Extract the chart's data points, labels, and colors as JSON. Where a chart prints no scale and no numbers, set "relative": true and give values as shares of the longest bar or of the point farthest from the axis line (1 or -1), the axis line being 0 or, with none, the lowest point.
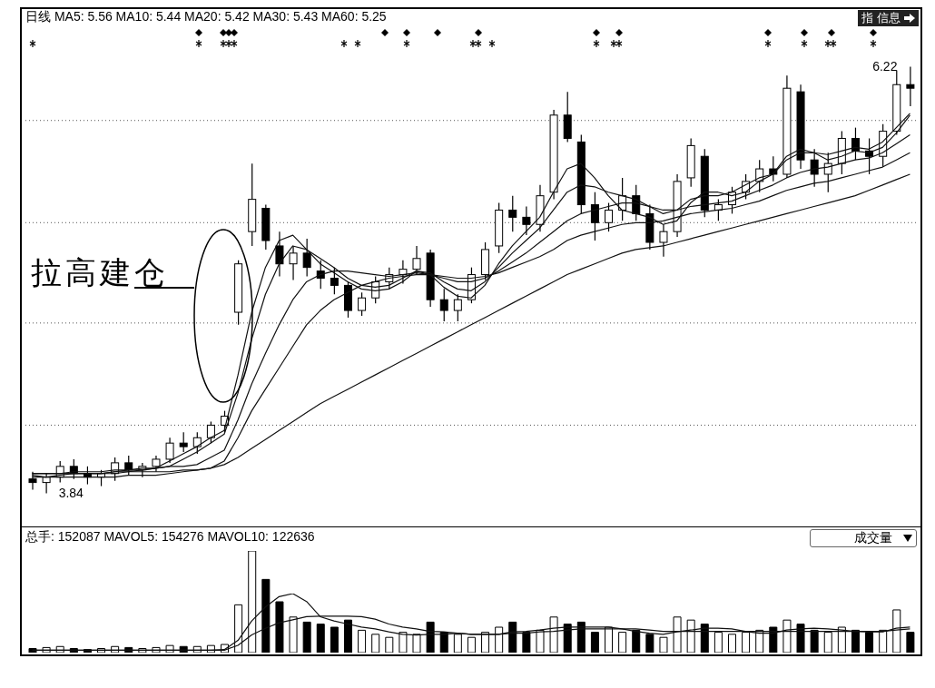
{
  "chart_data": [
    {
      "type": "candlestick",
      "title": "日线 MA5: 5.56 MA10: 5.44 MA20: 5.42 MA30: 5.43 MA60: 5.25",
      "categories": [
        null,
        null,
        null,
        null,
        null,
        null,
        null,
        null,
        null,
        null,
        null,
        null,
        null,
        null,
        null,
        null,
        null,
        null,
        null,
        null,
        null,
        null,
        null,
        null,
        null,
        null,
        null,
        null,
        null,
        null,
        null,
        null,
        null,
        null,
        null,
        null,
        null,
        null,
        null,
        null,
        null,
        null,
        null,
        null,
        null,
        null,
        null,
        null,
        null,
        null,
        null,
        null,
        null,
        null,
        null,
        null,
        null,
        null,
        null,
        null,
        null,
        null,
        null,
        null,
        null
      ],
      "ohlc": [
        [
          3.92,
          3.96,
          3.86,
          3.9
        ],
        [
          3.9,
          3.95,
          3.84,
          3.93
        ],
        [
          3.93,
          4.02,
          3.9,
          3.99
        ],
        [
          3.99,
          4.03,
          3.92,
          3.95
        ],
        [
          3.95,
          3.99,
          3.89,
          3.93
        ],
        [
          3.93,
          3.97,
          3.88,
          3.95
        ],
        [
          3.95,
          4.04,
          3.91,
          4.01
        ],
        [
          4.01,
          4.05,
          3.94,
          3.97
        ],
        [
          3.97,
          4.01,
          3.93,
          3.99
        ],
        [
          3.99,
          4.05,
          3.96,
          4.03
        ],
        [
          4.03,
          4.15,
          4.01,
          4.12
        ],
        [
          4.12,
          4.18,
          4.07,
          4.1
        ],
        [
          4.1,
          4.18,
          4.06,
          4.15
        ],
        [
          4.15,
          4.24,
          4.12,
          4.22
        ],
        [
          4.22,
          4.3,
          4.18,
          4.27
        ],
        [
          4.85,
          5.14,
          4.78,
          5.12
        ],
        [
          5.3,
          5.68,
          5.22,
          5.48
        ],
        [
          5.43,
          5.45,
          5.2,
          5.25
        ],
        [
          5.22,
          5.3,
          5.05,
          5.12
        ],
        [
          5.12,
          5.22,
          5.03,
          5.18
        ],
        [
          5.18,
          5.26,
          5.05,
          5.1
        ],
        [
          5.08,
          5.14,
          4.98,
          5.04
        ],
        [
          5.04,
          5.1,
          4.95,
          5.0
        ],
        [
          5.0,
          5.02,
          4.82,
          4.86
        ],
        [
          4.86,
          4.96,
          4.83,
          4.93
        ],
        [
          4.93,
          5.05,
          4.9,
          5.02
        ],
        [
          5.02,
          5.1,
          4.98,
          5.06
        ],
        [
          5.06,
          5.14,
          5.01,
          5.09
        ],
        [
          5.09,
          5.22,
          5.06,
          5.15
        ],
        [
          5.18,
          5.2,
          4.88,
          4.92
        ],
        [
          4.92,
          4.98,
          4.8,
          4.86
        ],
        [
          4.86,
          4.95,
          4.8,
          4.92
        ],
        [
          4.92,
          5.1,
          4.9,
          5.06
        ],
        [
          5.06,
          5.24,
          5.03,
          5.2
        ],
        [
          5.22,
          5.46,
          5.18,
          5.42
        ],
        [
          5.42,
          5.5,
          5.3,
          5.38
        ],
        [
          5.38,
          5.44,
          5.28,
          5.34
        ],
        [
          5.34,
          5.56,
          5.3,
          5.5
        ],
        [
          5.52,
          5.98,
          5.48,
          5.95
        ],
        [
          5.95,
          6.08,
          5.8,
          5.82
        ],
        [
          5.8,
          5.84,
          5.4,
          5.45
        ],
        [
          5.45,
          5.52,
          5.25,
          5.35
        ],
        [
          5.35,
          5.46,
          5.3,
          5.42
        ],
        [
          5.42,
          5.6,
          5.36,
          5.5
        ],
        [
          5.5,
          5.56,
          5.36,
          5.4
        ],
        [
          5.4,
          5.45,
          5.2,
          5.24
        ],
        [
          5.24,
          5.34,
          5.16,
          5.3
        ],
        [
          5.3,
          5.62,
          5.27,
          5.58
        ],
        [
          5.6,
          5.82,
          5.55,
          5.78
        ],
        [
          5.72,
          5.76,
          5.38,
          5.42
        ],
        [
          5.42,
          5.48,
          5.36,
          5.45
        ],
        [
          5.45,
          5.55,
          5.4,
          5.52
        ],
        [
          5.52,
          5.62,
          5.48,
          5.58
        ],
        [
          5.58,
          5.7,
          5.52,
          5.65
        ],
        [
          5.65,
          5.72,
          5.58,
          5.62
        ],
        [
          5.62,
          6.17,
          5.6,
          6.1
        ],
        [
          6.08,
          6.12,
          5.65,
          5.7
        ],
        [
          5.7,
          5.76,
          5.55,
          5.62
        ],
        [
          5.62,
          5.74,
          5.52,
          5.68
        ],
        [
          5.68,
          5.86,
          5.62,
          5.82
        ],
        [
          5.82,
          5.88,
          5.7,
          5.75
        ],
        [
          5.75,
          5.82,
          5.62,
          5.72
        ],
        [
          5.72,
          5.9,
          5.66,
          5.86
        ],
        [
          5.86,
          6.2,
          5.84,
          6.12
        ],
        [
          6.12,
          6.22,
          6.0,
          6.1
        ]
      ],
      "series": [
        {
          "type": "line",
          "color": "#111111",
          "values": [
            3.94,
            3.93,
            3.94,
            3.95,
            3.95,
            3.95,
            3.96,
            3.97,
            3.97,
            3.98,
            4.02,
            4.06,
            4.1,
            4.15,
            4.19,
            4.5,
            4.85,
            5.1,
            5.25,
            5.28,
            5.2,
            5.12,
            5.07,
            5.02,
            4.98,
            4.97,
            4.98,
            5.02,
            5.08,
            5.06,
            4.99,
            4.94,
            4.93,
            5.0,
            5.12,
            5.22,
            5.3,
            5.38,
            5.52,
            5.65,
            5.68,
            5.6,
            5.5,
            5.42,
            5.4,
            5.38,
            5.34,
            5.36,
            5.46,
            5.52,
            5.52,
            5.5,
            5.52,
            5.58,
            5.62,
            5.72,
            5.76,
            5.74,
            5.7,
            5.72,
            5.75,
            5.74,
            5.77,
            5.85,
            5.95
          ]
        },
        {
          "type": "line",
          "color": "#111111",
          "values": [
            3.95,
            3.95,
            3.95,
            3.95,
            3.95,
            3.95,
            3.96,
            3.96,
            3.97,
            3.98,
            3.99,
            4.03,
            4.07,
            4.12,
            4.17,
            4.4,
            4.7,
            4.95,
            5.12,
            5.22,
            5.2,
            5.15,
            5.1,
            5.04,
            5.0,
            4.99,
            5.0,
            5.04,
            5.08,
            5.07,
            5.02,
            4.98,
            4.97,
            5.02,
            5.1,
            5.18,
            5.25,
            5.32,
            5.42,
            5.52,
            5.56,
            5.55,
            5.52,
            5.5,
            5.48,
            5.44,
            5.4,
            5.42,
            5.48,
            5.5,
            5.5,
            5.52,
            5.56,
            5.6,
            5.62,
            5.7,
            5.74,
            5.74,
            5.73,
            5.75,
            5.77,
            5.76,
            5.8,
            5.88,
            5.96
          ]
        },
        {
          "type": "line",
          "color": "#111111",
          "values": [
            3.95,
            3.95,
            3.95,
            3.96,
            3.96,
            3.96,
            3.97,
            3.97,
            3.98,
            3.98,
            3.99,
            3.99,
            4.0,
            4.04,
            4.08,
            4.25,
            4.45,
            4.62,
            4.78,
            4.92,
            5.02,
            5.06,
            5.08,
            5.08,
            5.07,
            5.06,
            5.05,
            5.06,
            5.07,
            5.06,
            5.04,
            5.02,
            5.02,
            5.04,
            5.08,
            5.13,
            5.18,
            5.24,
            5.3,
            5.36,
            5.4,
            5.42,
            5.44,
            5.46,
            5.46,
            5.44,
            5.42,
            5.42,
            5.44,
            5.45,
            5.46,
            5.47,
            5.5,
            5.53,
            5.56,
            5.6,
            5.63,
            5.65,
            5.66,
            5.68,
            5.7,
            5.71,
            5.74,
            5.79,
            5.84
          ]
        },
        {
          "type": "line",
          "color": "#111111",
          "values": [
            3.95,
            3.95,
            3.95,
            3.95,
            3.95,
            3.95,
            3.95,
            3.96,
            3.96,
            3.96,
            3.96,
            3.97,
            3.97,
            3.98,
            4.02,
            4.15,
            4.3,
            4.42,
            4.54,
            4.66,
            4.78,
            4.86,
            4.92,
            4.96,
            5.0,
            5.02,
            5.04,
            5.05,
            5.06,
            5.06,
            5.05,
            5.04,
            5.04,
            5.05,
            5.07,
            5.1,
            5.13,
            5.16,
            5.2,
            5.25,
            5.28,
            5.3,
            5.32,
            5.34,
            5.35,
            5.35,
            5.36,
            5.38,
            5.4,
            5.41,
            5.42,
            5.43,
            5.45,
            5.47,
            5.5,
            5.53,
            5.55,
            5.57,
            5.58,
            5.6,
            5.62,
            5.64,
            5.66,
            5.7,
            5.74
          ]
        },
        {
          "type": "line",
          "color": "#111111",
          "values": [
            3.93,
            3.93,
            3.93,
            3.93,
            3.93,
            3.93,
            3.93,
            3.94,
            3.94,
            3.94,
            3.95,
            3.96,
            3.97,
            3.98,
            4.0,
            4.04,
            4.09,
            4.14,
            4.19,
            4.24,
            4.29,
            4.34,
            4.38,
            4.42,
            4.46,
            4.5,
            4.54,
            4.58,
            4.62,
            4.66,
            4.7,
            4.74,
            4.78,
            4.82,
            4.86,
            4.9,
            4.94,
            4.98,
            5.02,
            5.06,
            5.09,
            5.12,
            5.15,
            5.18,
            5.2,
            5.21,
            5.22,
            5.24,
            5.26,
            5.28,
            5.3,
            5.32,
            5.34,
            5.36,
            5.38,
            5.4,
            5.42,
            5.44,
            5.46,
            5.48,
            5.5,
            5.53,
            5.56,
            5.59,
            5.62
          ]
        }
      ],
      "annotations": [
        "拉高建仓",
        "指 信息",
        "6.22",
        "3.84"
      ],
      "yticks": [
        {
          "value": 4.22,
          "label": null
        },
        {
          "value": 4.79,
          "label": null
        },
        {
          "value": 5.35,
          "label": null
        },
        {
          "value": 5.92,
          "label": null
        }
      ],
      "grid": "y"
    },
    {
      "type": "bar",
      "relative": true,
      "title": "总手: 152087 MAVOL5: 154276 MAVOL10: 122636",
      "categories": [
        null,
        null,
        null,
        null,
        null,
        null,
        null,
        null,
        null,
        null,
        null,
        null,
        null,
        null,
        null,
        null,
        null,
        null,
        null,
        null,
        null,
        null,
        null,
        null,
        null,
        null,
        null,
        null,
        null,
        null,
        null,
        null,
        null,
        null,
        null,
        null,
        null,
        null,
        null,
        null,
        null,
        null,
        null,
        null,
        null,
        null,
        null,
        null,
        null,
        null,
        null,
        null,
        null,
        null,
        null,
        null,
        null,
        null,
        null,
        null,
        null,
        null,
        null,
        null,
        null
      ],
      "series": [
        {
          "type": "bar",
          "values": [
            0.04,
            0.05,
            0.06,
            0.04,
            0.03,
            0.04,
            0.06,
            0.05,
            0.04,
            0.05,
            0.07,
            0.06,
            0.06,
            0.07,
            0.08,
            0.47,
            1.0,
            0.72,
            0.5,
            0.35,
            0.3,
            0.28,
            0.25,
            0.32,
            0.22,
            0.18,
            0.15,
            0.2,
            0.18,
            0.3,
            0.2,
            0.18,
            0.15,
            0.2,
            0.25,
            0.3,
            0.2,
            0.22,
            0.35,
            0.28,
            0.3,
            0.2,
            0.25,
            0.2,
            0.22,
            0.18,
            0.15,
            0.35,
            0.32,
            0.28,
            0.2,
            0.18,
            0.2,
            0.22,
            0.25,
            0.32,
            0.28,
            0.22,
            0.2,
            0.25,
            0.22,
            0.2,
            0.22,
            0.42,
            0.2
          ],
          "colors": [
            "#000000",
            "#ffffff",
            "#ffffff",
            "#000000",
            "#000000",
            "#ffffff",
            "#ffffff",
            "#000000",
            "#ffffff",
            "#ffffff",
            "#ffffff",
            "#000000",
            "#ffffff",
            "#ffffff",
            "#ffffff",
            "#ffffff",
            "#ffffff",
            "#000000",
            "#000000",
            "#ffffff",
            "#000000",
            "#000000",
            "#000000",
            "#000000",
            "#ffffff",
            "#ffffff",
            "#ffffff",
            "#ffffff",
            "#ffffff",
            "#000000",
            "#000000",
            "#ffffff",
            "#ffffff",
            "#ffffff",
            "#ffffff",
            "#000000",
            "#000000",
            "#ffffff",
            "#ffffff",
            "#000000",
            "#000000",
            "#000000",
            "#ffffff",
            "#ffffff",
            "#000000",
            "#000000",
            "#ffffff",
            "#ffffff",
            "#ffffff",
            "#000000",
            "#ffffff",
            "#ffffff",
            "#ffffff",
            "#ffffff",
            "#000000",
            "#ffffff",
            "#000000",
            "#000000",
            "#ffffff",
            "#ffffff",
            "#000000",
            "#000000",
            "#ffffff",
            "#ffffff",
            "#000000"
          ]
        }
      ],
      "annotations": [
        "成交量"
      ]
    },
    {
      "type": "line",
      "relative": true,
      "categories": [
        null,
        null,
        null,
        null,
        null,
        null,
        null,
        null,
        null,
        null,
        null,
        null,
        null,
        null,
        null,
        null,
        null,
        null,
        null,
        null,
        null,
        null,
        null,
        null,
        null,
        null,
        null,
        null,
        null,
        null,
        null,
        null,
        null,
        null,
        null,
        null,
        null,
        null,
        null,
        null,
        null,
        null,
        null,
        null,
        null,
        null,
        null,
        null,
        null,
        null,
        null,
        null,
        null,
        null,
        null,
        null,
        null,
        null,
        null,
        null,
        null,
        null,
        null,
        null,
        null
      ],
      "series": [
        {
          "color": "#111111",
          "values": [
            0.07,
            0.07,
            0.07,
            0.07,
            0.07,
            0.07,
            0.07,
            0.07,
            0.07,
            0.07,
            0.07,
            0.07,
            0.07,
            0.07,
            0.08,
            0.23,
            0.55,
            0.78,
            0.95,
            1,
            0.87,
            0.62,
            0.55,
            0.5,
            0.45,
            0.42,
            0.37,
            0.33,
            0.32,
            0.33,
            0.33,
            0.35,
            0.33,
            0.33,
            0.33,
            0.37,
            0.38,
            0.4,
            0.43,
            0.45,
            0.45,
            0.45,
            0.45,
            0.42,
            0.38,
            0.35,
            0.33,
            0.37,
            0.4,
            0.43,
            0.43,
            0.42,
            0.38,
            0.35,
            0.35,
            0.4,
            0.42,
            0.43,
            0.42,
            0.4,
            0.38,
            0.37,
            0.37,
            0.43,
            0.45
          ]
        },
        {
          "color": "#111111",
          "values": [
            0.07,
            0.07,
            0.07,
            0.07,
            0.07,
            0.07,
            0.07,
            0.07,
            0.07,
            0.07,
            0.07,
            0.07,
            0.07,
            0.07,
            0.07,
            0.15,
            0.32,
            0.43,
            0.52,
            0.57,
            0.62,
            0.63,
            0.63,
            0.63,
            0.62,
            0.58,
            0.5,
            0.45,
            0.42,
            0.38,
            0.37,
            0.35,
            0.33,
            0.33,
            0.33,
            0.35,
            0.35,
            0.37,
            0.38,
            0.4,
            0.42,
            0.42,
            0.42,
            0.42,
            0.42,
            0.4,
            0.38,
            0.38,
            0.38,
            0.38,
            0.38,
            0.38,
            0.38,
            0.38,
            0.38,
            0.38,
            0.38,
            0.38,
            0.38,
            0.38,
            0.38,
            0.38,
            0.38,
            0.4,
            0.42
          ]
        }
      ]
    }
  ]
}
